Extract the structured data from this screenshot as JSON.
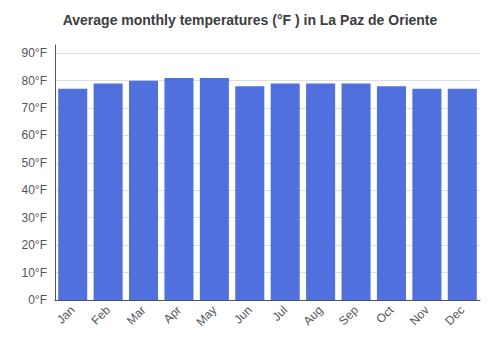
{
  "chart_data": {
    "type": "bar",
    "title": "Average monthly temperatures (°F ) in La Paz de Oriente",
    "categories": [
      "Jan",
      "Feb",
      "Mar",
      "Apr",
      "May",
      "Jun",
      "Jul",
      "Aug",
      "Sep",
      "Oct",
      "Nov",
      "Dec"
    ],
    "values": [
      77,
      79,
      80,
      81,
      81,
      78,
      79,
      79,
      79,
      78,
      77,
      77
    ],
    "ylim": [
      0,
      93
    ],
    "yticks": [
      {
        "value": 0,
        "label": "0°F"
      },
      {
        "value": 10,
        "label": "10°F"
      },
      {
        "value": 20,
        "label": "20°F"
      },
      {
        "value": 30,
        "label": "30°F"
      },
      {
        "value": 40,
        "label": "40°F"
      },
      {
        "value": 50,
        "label": "50°F"
      },
      {
        "value": 60,
        "label": "60°F"
      },
      {
        "value": 70,
        "label": "70°F"
      },
      {
        "value": 80,
        "label": "80°F"
      },
      {
        "value": 90,
        "label": "90°F"
      }
    ],
    "grid": true
  }
}
